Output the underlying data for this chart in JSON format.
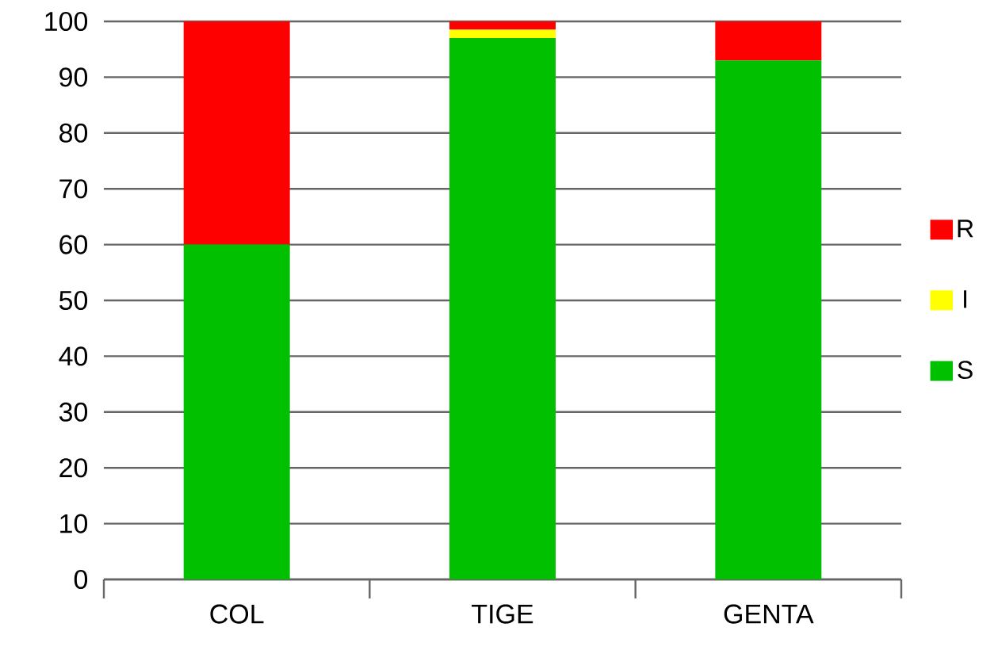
{
  "chart_data": {
    "type": "bar",
    "stacked": true,
    "categories": [
      "COL",
      "TIGE",
      "GENTA"
    ],
    "series": [
      {
        "name": "S",
        "color": "#00c000",
        "values": [
          60,
          97,
          93
        ]
      },
      {
        "name": "I",
        "color": "#ffff00",
        "values": [
          0,
          1.5,
          0
        ]
      },
      {
        "name": "R",
        "color": "#ff0000",
        "values": [
          40,
          1.5,
          7
        ]
      }
    ],
    "ylim": [
      0,
      100
    ],
    "yticks": [
      0,
      10,
      20,
      30,
      40,
      50,
      60,
      70,
      80,
      90,
      100
    ],
    "grid": "y",
    "legend": "right"
  }
}
